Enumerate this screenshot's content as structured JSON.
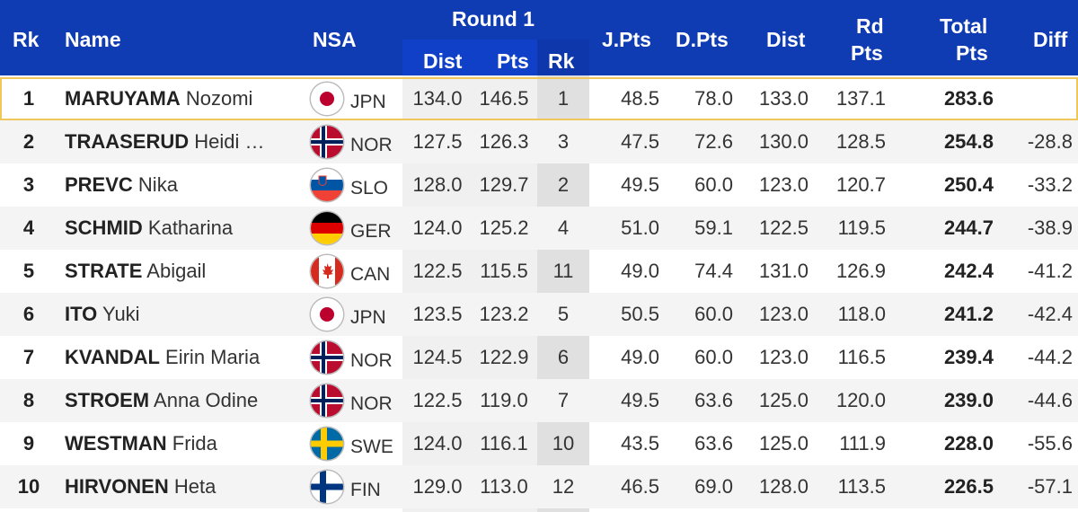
{
  "header": {
    "rk": "Rk",
    "name": "Name",
    "nsa": "NSA",
    "round1": "Round 1",
    "r1_dist": "Dist",
    "r1_pts": "Pts",
    "r1_rk": "Rk",
    "jpts": "J.Pts",
    "dpts": "D.Pts",
    "dist": "Dist",
    "rd_pts_line1": "Rd",
    "rd_pts_line2": "Pts",
    "total_line1": "Total",
    "total_line2": "Pts",
    "diff": "Diff"
  },
  "colors": {
    "header_bg": "#0f3bb3",
    "highlight_border": "#f1c75c"
  },
  "rows": [
    {
      "rk": "1",
      "last": "MARUYAMA",
      "first": "Nozomi",
      "flag": "jpn-flag-icon",
      "nsa": "JPN",
      "dist": "134.0",
      "pts": "146.5",
      "r1rk": "1",
      "jpts": "48.5",
      "dpts": "78.0",
      "dist2": "133.0",
      "rdpts": "137.1",
      "total": "283.6",
      "diff": ""
    },
    {
      "rk": "2",
      "last": "TRAASERUD",
      "first": "Heidi …",
      "flag": "nor-flag-icon",
      "nsa": "NOR",
      "dist": "127.5",
      "pts": "126.3",
      "r1rk": "3",
      "jpts": "47.5",
      "dpts": "72.6",
      "dist2": "130.0",
      "rdpts": "128.5",
      "total": "254.8",
      "diff": "-28.8"
    },
    {
      "rk": "3",
      "last": "PREVC",
      "first": "Nika",
      "flag": "slo-flag-icon",
      "nsa": "SLO",
      "dist": "128.0",
      "pts": "129.7",
      "r1rk": "2",
      "jpts": "49.5",
      "dpts": "60.0",
      "dist2": "123.0",
      "rdpts": "120.7",
      "total": "250.4",
      "diff": "-33.2"
    },
    {
      "rk": "4",
      "last": "SCHMID",
      "first": "Katharina",
      "flag": "ger-flag-icon",
      "nsa": "GER",
      "dist": "124.0",
      "pts": "125.2",
      "r1rk": "4",
      "jpts": "51.0",
      "dpts": "59.1",
      "dist2": "122.5",
      "rdpts": "119.5",
      "total": "244.7",
      "diff": "-38.9"
    },
    {
      "rk": "5",
      "last": "STRATE",
      "first": "Abigail",
      "flag": "can-flag-icon",
      "nsa": "CAN",
      "dist": "122.5",
      "pts": "115.5",
      "r1rk": "11",
      "jpts": "49.0",
      "dpts": "74.4",
      "dist2": "131.0",
      "rdpts": "126.9",
      "total": "242.4",
      "diff": "-41.2"
    },
    {
      "rk": "6",
      "last": "ITO",
      "first": "Yuki",
      "flag": "jpn-flag-icon",
      "nsa": "JPN",
      "dist": "123.5",
      "pts": "123.2",
      "r1rk": "5",
      "jpts": "50.5",
      "dpts": "60.0",
      "dist2": "123.0",
      "rdpts": "118.0",
      "total": "241.2",
      "diff": "-42.4"
    },
    {
      "rk": "7",
      "last": "KVANDAL",
      "first": "Eirin Maria",
      "flag": "nor-flag-icon",
      "nsa": "NOR",
      "dist": "124.5",
      "pts": "122.9",
      "r1rk": "6",
      "jpts": "49.0",
      "dpts": "60.0",
      "dist2": "123.0",
      "rdpts": "116.5",
      "total": "239.4",
      "diff": "-44.2"
    },
    {
      "rk": "8",
      "last": "STROEM",
      "first": "Anna Odine",
      "flag": "nor-flag-icon",
      "nsa": "NOR",
      "dist": "122.5",
      "pts": "119.0",
      "r1rk": "7",
      "jpts": "49.5",
      "dpts": "63.6",
      "dist2": "125.0",
      "rdpts": "120.0",
      "total": "239.0",
      "diff": "-44.6"
    },
    {
      "rk": "9",
      "last": "WESTMAN",
      "first": "Frida",
      "flag": "swe-flag-icon",
      "nsa": "SWE",
      "dist": "124.0",
      "pts": "116.1",
      "r1rk": "10",
      "jpts": "43.5",
      "dpts": "63.6",
      "dist2": "125.0",
      "rdpts": "111.9",
      "total": "228.0",
      "diff": "-55.6"
    },
    {
      "rk": "10",
      "last": "HIRVONEN",
      "first": "Heta",
      "flag": "fin-flag-icon",
      "nsa": "FIN",
      "dist": "129.0",
      "pts": "113.0",
      "r1rk": "12",
      "jpts": "46.5",
      "dpts": "69.0",
      "dist2": "128.0",
      "rdpts": "113.5",
      "total": "226.5",
      "diff": "-57.1"
    }
  ]
}
